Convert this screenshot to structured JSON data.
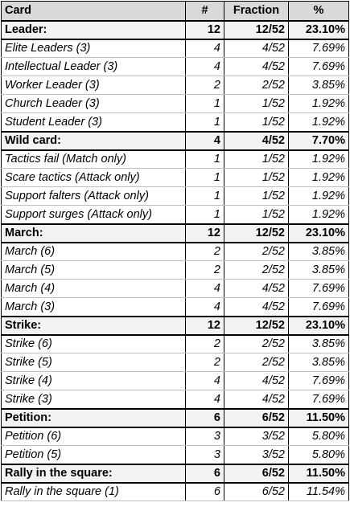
{
  "table": {
    "headers": [
      "Card",
      "#",
      "Fraction",
      "%"
    ],
    "rows": [
      {
        "type": "group",
        "card": "Leader:",
        "count": "12",
        "fraction": "12/52",
        "percent": "23.10%"
      },
      {
        "type": "item",
        "card": "Elite Leaders (3)",
        "count": "4",
        "fraction": "4/52",
        "percent": "7.69%"
      },
      {
        "type": "item",
        "card": "Intellectual Leader  (3)",
        "count": "4",
        "fraction": "4/52",
        "percent": "7.69%"
      },
      {
        "type": "item",
        "card": "Worker Leader  (3)",
        "count": "2",
        "fraction": "2/52",
        "percent": "3.85%"
      },
      {
        "type": "item",
        "card": "Church Leader  (3)",
        "count": "1",
        "fraction": "1/52",
        "percent": "1.92%"
      },
      {
        "type": "item",
        "card": "Student Leader  (3)",
        "count": "1",
        "fraction": "1/52",
        "percent": "1.92%"
      },
      {
        "type": "group",
        "card": "Wild card:",
        "count": "4",
        "fraction": "4/52",
        "percent": "7.70%"
      },
      {
        "type": "item",
        "card": "Tactics fail (Match only)",
        "count": "1",
        "fraction": "1/52",
        "percent": "1.92%"
      },
      {
        "type": "item",
        "card": "Scare tactics (Attack only)",
        "count": "1",
        "fraction": "1/52",
        "percent": "1.92%"
      },
      {
        "type": "item",
        "card": "Support falters (Attack only)",
        "count": "1",
        "fraction": "1/52",
        "percent": "1.92%"
      },
      {
        "type": "item",
        "card": "Support surges  (Attack only)",
        "count": "1",
        "fraction": "1/52",
        "percent": "1.92%"
      },
      {
        "type": "group",
        "card": "March:",
        "count": "12",
        "fraction": "12/52",
        "percent": "23.10%"
      },
      {
        "type": "item",
        "card": "March (6)",
        "count": "2",
        "fraction": "2/52",
        "percent": "3.85%"
      },
      {
        "type": "item",
        "card": "March (5)",
        "count": "2",
        "fraction": "2/52",
        "percent": "3.85%"
      },
      {
        "type": "item",
        "card": "March (4)",
        "count": "4",
        "fraction": "4/52",
        "percent": "7.69%"
      },
      {
        "type": "item",
        "card": "March (3)",
        "count": "4",
        "fraction": "4/52",
        "percent": "7.69%"
      },
      {
        "type": "group",
        "card": "Strike:",
        "count": "12",
        "fraction": "12/52",
        "percent": "23.10%"
      },
      {
        "type": "item",
        "card": "Strike (6)",
        "count": "2",
        "fraction": "2/52",
        "percent": "3.85%"
      },
      {
        "type": "item",
        "card": "Strike (5)",
        "count": "2",
        "fraction": "2/52",
        "percent": "3.85%"
      },
      {
        "type": "item",
        "card": "Strike (4)",
        "count": "4",
        "fraction": "4/52",
        "percent": "7.69%"
      },
      {
        "type": "item",
        "card": "Strike (3)",
        "count": "4",
        "fraction": "4/52",
        "percent": "7.69%"
      },
      {
        "type": "group",
        "card": "Petition:",
        "count": "6",
        "fraction": "6/52",
        "percent": "11.50%"
      },
      {
        "type": "item",
        "card": "Petition (6)",
        "count": "3",
        "fraction": "3/52",
        "percent": "5.80%"
      },
      {
        "type": "item",
        "card": "Petition (5)",
        "count": "3",
        "fraction": "3/52",
        "percent": "5.80%"
      },
      {
        "type": "group",
        "card": "Rally in the square:",
        "count": "6",
        "fraction": "6/52",
        "percent": "11.50%"
      },
      {
        "type": "item",
        "card": "Rally in the square (1)",
        "count": "6",
        "fraction": "6/52",
        "percent": "11.54%"
      }
    ]
  }
}
